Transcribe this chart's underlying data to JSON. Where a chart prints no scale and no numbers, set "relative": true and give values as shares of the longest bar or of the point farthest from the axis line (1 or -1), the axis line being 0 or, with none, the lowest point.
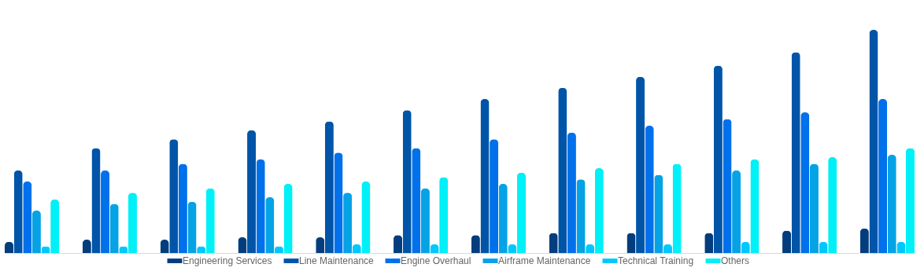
{
  "chart_data": {
    "type": "bar",
    "relative": true,
    "legend": "bottom",
    "categories": [
      null,
      null,
      null,
      null,
      null,
      null,
      null,
      null,
      null,
      null,
      null,
      null
    ],
    "series": [
      {
        "name": "Engineering Services",
        "color": "#033d7d",
        "values": [
          0.05,
          0.06,
          0.06,
          0.07,
          0.07,
          0.08,
          0.08,
          0.09,
          0.09,
          0.09,
          0.1,
          0.11
        ]
      },
      {
        "name": "Line Maintenance",
        "color": "#0055a8",
        "values": [
          0.37,
          0.47,
          0.51,
          0.55,
          0.59,
          0.64,
          0.69,
          0.74,
          0.79,
          0.84,
          0.9,
          1
        ]
      },
      {
        "name": "Engine Overhaul",
        "color": "#0070eb",
        "values": [
          0.32,
          0.37,
          0.4,
          0.42,
          0.45,
          0.47,
          0.51,
          0.54,
          0.57,
          0.6,
          0.63,
          0.69
        ]
      },
      {
        "name": "Airframe Maintenance",
        "color": "#05a3e5",
        "values": [
          0.19,
          0.22,
          0.23,
          0.25,
          0.27,
          0.29,
          0.31,
          0.33,
          0.35,
          0.37,
          0.4,
          0.44
        ]
      },
      {
        "name": "Technical Training",
        "color": "#00c8ff",
        "values": [
          0.03,
          0.03,
          0.03,
          0.03,
          0.04,
          0.04,
          0.04,
          0.04,
          0.04,
          0.05,
          0.05,
          0.05
        ]
      },
      {
        "name": "Others",
        "color": "#00f0f7",
        "values": [
          0.24,
          0.27,
          0.29,
          0.31,
          0.32,
          0.34,
          0.36,
          0.38,
          0.4,
          0.42,
          0.43,
          0.47
        ]
      }
    ]
  }
}
